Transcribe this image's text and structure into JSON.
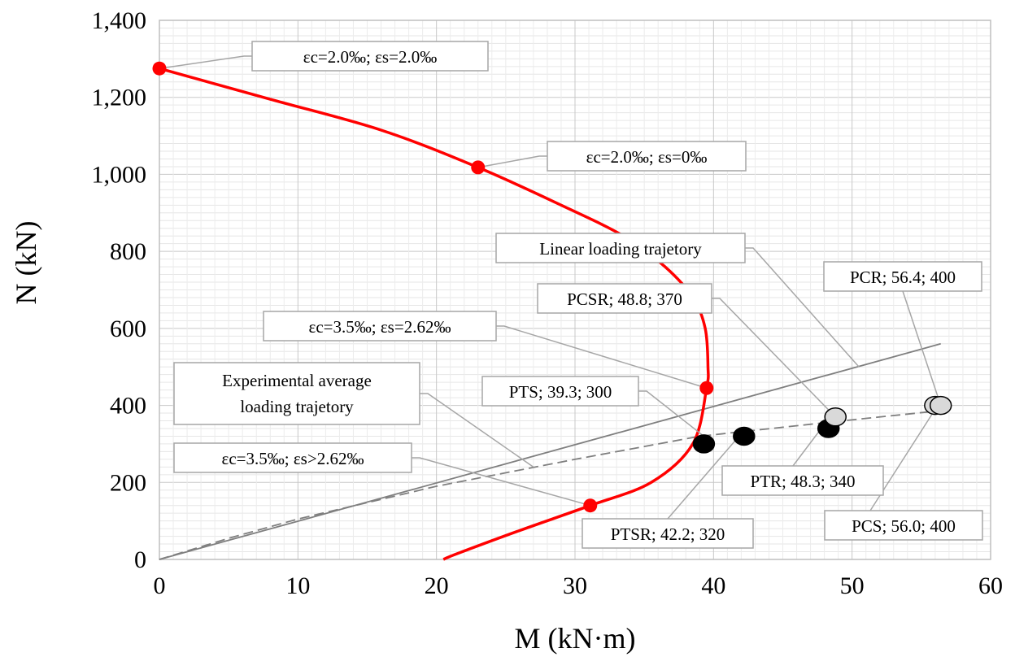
{
  "chart_data": {
    "type": "line",
    "title": "",
    "xlabel": "M (kN·m)",
    "ylabel": "N (kN)",
    "xlim": [
      0,
      60
    ],
    "ylim": [
      0,
      1400
    ],
    "x_ticks": [
      0,
      10,
      20,
      30,
      40,
      50,
      60
    ],
    "y_ticks": [
      0,
      200,
      400,
      600,
      800,
      1000,
      1200,
      1400
    ],
    "y_tick_labels": [
      "0",
      "200",
      "400",
      "600",
      "800",
      "1,000",
      "1,200",
      "1,400"
    ],
    "grid": true,
    "colors": {
      "interaction_curve": "#ff0000",
      "linear_trajectory": "#7f7f7f",
      "experimental_trajectory": "#7f7f7f",
      "shear_specimens": "#000000",
      "reference_specimens": "#d9d9d9",
      "callout_border": "#a6a6a6"
    },
    "series": [
      {
        "style": "solid-red-curve",
        "x": [
          0,
          8,
          16,
          23,
          29,
          33.5,
          36.5,
          38.5,
          39.4,
          39.6,
          39.5,
          38.5,
          35.5,
          31.1,
          26,
          21.5,
          20.5
        ],
        "y": [
          1275,
          1195,
          1115,
          1018,
          920,
          840,
          760,
          680,
          600,
          500,
          445,
          300,
          200,
          140,
          75,
          15,
          0
        ],
        "markers": [
          {
            "x": 0,
            "y": 1275
          },
          {
            "x": 23,
            "y": 1018
          },
          {
            "x": 39.5,
            "y": 445
          },
          {
            "x": 31.1,
            "y": 140
          }
        ]
      },
      {
        "style": "solid-gray-line",
        "x": [
          0,
          56.4
        ],
        "y": [
          0,
          560
        ]
      },
      {
        "style": "dashed-gray-line",
        "x": [
          0,
          5,
          10,
          20,
          30,
          39,
          48,
          56
        ],
        "y": [
          0,
          55,
          105,
          190,
          260,
          320,
          355,
          385
        ]
      }
    ],
    "specimens": [
      {
        "label": "PTS; 39.3; 300",
        "x": 39.3,
        "y": 300,
        "fill": "black"
      },
      {
        "label": "PTSR; 42.2; 320",
        "x": 42.2,
        "y": 320,
        "fill": "black"
      },
      {
        "label": "PTR; 48.3; 340",
        "x": 48.3,
        "y": 340,
        "fill": "black"
      },
      {
        "label": "PCSR; 48.8; 370",
        "x": 48.8,
        "y": 370,
        "fill": "light"
      },
      {
        "label": "PCS; 56.0; 400",
        "x": 56.0,
        "y": 400,
        "fill": "light"
      },
      {
        "label": "PCR; 56.4; 400",
        "x": 56.4,
        "y": 400,
        "fill": "light"
      }
    ],
    "annotations": [
      {
        "id": "eps1",
        "text": "εc=2.0‰; εs=2.0‰"
      },
      {
        "id": "eps2",
        "text": "εc=2.0‰; εs=0‰"
      },
      {
        "id": "eps3",
        "text": "εc=3.5‰; εs=2.62‰"
      },
      {
        "id": "eps4",
        "text": "εc=3.5‰; εs>2.62‰"
      },
      {
        "id": "linear",
        "text": "Linear loading trajetory"
      },
      {
        "id": "exp",
        "lines": [
          "Experimental  average",
          "loading trajetory"
        ]
      },
      {
        "id": "pts",
        "text": "PTS; 39.3; 300"
      },
      {
        "id": "ptsr",
        "text": "PTSR; 42.2; 320"
      },
      {
        "id": "ptr",
        "text": "PTR; 48.3; 340"
      },
      {
        "id": "pcsr",
        "text": "PCSR; 48.8; 370"
      },
      {
        "id": "pcs",
        "text": "PCS; 56.0; 400"
      },
      {
        "id": "pcr",
        "text": "PCR; 56.4; 400"
      }
    ]
  }
}
